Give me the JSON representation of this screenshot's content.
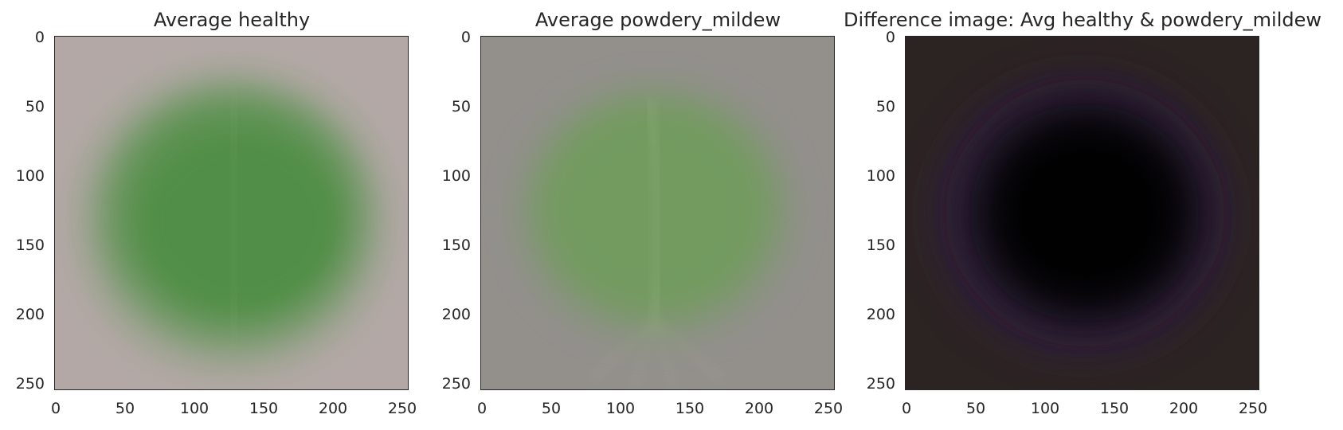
{
  "panels": [
    {
      "title": "Average healthy",
      "image": {
        "subject": "average leaf image, healthy class",
        "background_color": "#b3a8a6",
        "leaf_color": "#4f8e45",
        "mid_color": "#6e9a63"
      },
      "x_ticks": [
        "0",
        "50",
        "100",
        "150",
        "200",
        "250"
      ],
      "y_ticks": [
        "0",
        "50",
        "100",
        "150",
        "200",
        "250"
      ]
    },
    {
      "title": "Average powdery_mildew",
      "image": {
        "subject": "average leaf image, powdery mildew class",
        "background_color": "#93908c",
        "leaf_color": "#6f9c5a",
        "mid_color": "#7d9770"
      },
      "x_ticks": [
        "0",
        "50",
        "100",
        "150",
        "200",
        "250"
      ],
      "y_ticks": [
        "0",
        "50",
        "100",
        "150",
        "200",
        "250"
      ]
    },
    {
      "title": "Difference image: Avg healthy & powdery_mildew",
      "image": {
        "subject": "difference image between class averages",
        "background_color": "#2c2422",
        "leaf_color": "#030303",
        "mid_color": "#1d1526",
        "edge_tint": "#3a2350"
      },
      "x_ticks": [
        "0",
        "50",
        "100",
        "150",
        "200",
        "250"
      ],
      "y_ticks": [
        "0",
        "50",
        "100",
        "150",
        "200",
        "250"
      ]
    }
  ]
}
